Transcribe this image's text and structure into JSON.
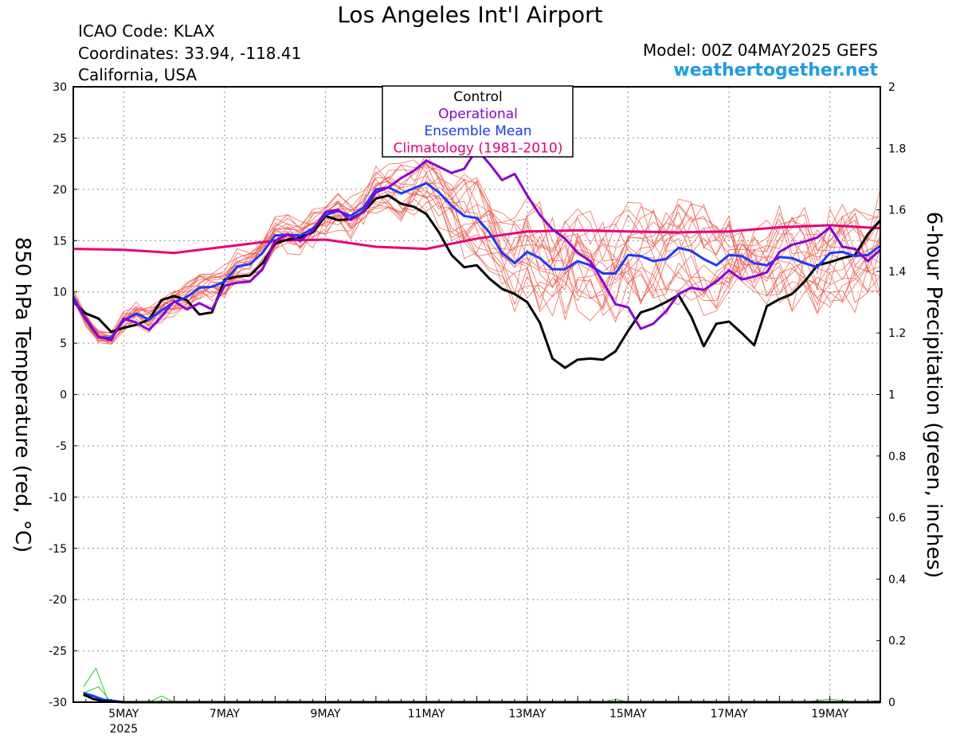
{
  "header": {
    "title": "Los Angeles Int'l Airport",
    "icao": "ICAO Code: KLAX",
    "coordinates": "Coordinates: 33.94, -118.41",
    "region": "California, USA",
    "model": "Model: 00Z 04MAY2025 GEFS",
    "site": "weathertogether.net"
  },
  "chart_data": {
    "type": "line",
    "title": "Los Angeles Int'l Airport",
    "ylabel": "850 hPa Temperature (red, °C)",
    "y2label": "6-hour Precipitation (green, inches)",
    "ylim": [
      -30,
      30
    ],
    "y2lim": [
      0,
      2
    ],
    "yticks": [
      30,
      25,
      20,
      15,
      10,
      5,
      0,
      -5,
      -10,
      -15,
      -20,
      -25,
      -30
    ],
    "y2ticks": [
      "2",
      "1.8",
      "1.6",
      "1.4",
      "1.2",
      "1",
      "0.8",
      "0.6",
      "0.4",
      "0.2",
      "0"
    ],
    "xlim_days": [
      0,
      16
    ],
    "x_tick_labels": [
      {
        "day": 1,
        "label": "5MAY",
        "sub": "2025"
      },
      {
        "day": 3,
        "label": "7MAY"
      },
      {
        "day": 5,
        "label": "9MAY"
      },
      {
        "day": 7,
        "label": "11MAY"
      },
      {
        "day": 9,
        "label": "13MAY"
      },
      {
        "day": 11,
        "label": "15MAY"
      },
      {
        "day": 13,
        "label": "17MAY"
      },
      {
        "day": 15,
        "label": "19MAY"
      }
    ],
    "grid": true,
    "legend_position": "top-center",
    "legend": [
      {
        "name": "Control",
        "color": "#000000"
      },
      {
        "name": "Operational",
        "color": "#8a00d6"
      },
      {
        "name": "Ensemble Mean",
        "color": "#1a3aff"
      },
      {
        "name": "Climatology (1981-2010)",
        "color": "#e6007a"
      }
    ],
    "series": [
      {
        "name": "Climatology (1981-2010)",
        "color": "#e6007a",
        "width": 3,
        "x": [
          0,
          1,
          2,
          3,
          4,
          5,
          6,
          7,
          8,
          9,
          10,
          11,
          12,
          13,
          14,
          15,
          16
        ],
        "y": [
          14.2,
          14.1,
          13.8,
          14.4,
          15.0,
          15.1,
          14.4,
          14.2,
          15.2,
          15.9,
          16.0,
          15.9,
          15.8,
          15.9,
          16.3,
          16.5,
          16.2
        ]
      },
      {
        "name": "Control",
        "color": "#000000",
        "width": 3,
        "x": [
          0,
          0.25,
          0.5,
          0.75,
          1,
          1.25,
          1.5,
          1.75,
          2,
          2.25,
          2.5,
          2.75,
          3,
          3.25,
          3.5,
          3.75,
          4,
          4.25,
          4.5,
          4.75,
          5,
          5.25,
          5.5,
          5.75,
          6,
          6.25,
          6.5,
          6.75,
          7,
          7.25,
          7.5,
          7.75,
          8,
          8.25,
          8.5,
          8.75,
          9,
          9.25,
          9.5,
          9.75,
          10,
          10.25,
          10.5,
          10.75,
          11,
          11.25,
          11.5,
          11.75,
          12,
          12.25,
          12.5,
          12.75,
          13,
          13.25,
          13.5,
          13.75,
          14,
          14.25,
          14.5,
          14.75,
          15,
          15.25,
          15.5,
          15.75,
          16
        ],
        "y": [
          9.0,
          7.9,
          7.4,
          6.1,
          6.5,
          6.8,
          7.3,
          9.2,
          9.6,
          9.2,
          7.8,
          8.0,
          11.2,
          11.5,
          11.6,
          12.8,
          14.7,
          15.1,
          15.3,
          15.8,
          17.4,
          17.0,
          17.1,
          17.8,
          19.1,
          19.4,
          18.6,
          18.3,
          17.6,
          15.8,
          13.6,
          12.4,
          12.6,
          11.3,
          10.3,
          9.8,
          9.0,
          7.0,
          3.5,
          2.6,
          3.4,
          3.5,
          3.4,
          4.2,
          6.2,
          8.0,
          8.4,
          9.0,
          9.7,
          7.6,
          4.7,
          6.9,
          7.1,
          6.0,
          4.8,
          8.6,
          9.3,
          9.8,
          11.0,
          12.6,
          12.9,
          13.3,
          13.6,
          15.6,
          17.0
        ]
      },
      {
        "name": "Ensemble Mean",
        "color": "#1a3aff",
        "width": 3,
        "x": [
          0,
          0.25,
          0.5,
          0.75,
          1,
          1.25,
          1.5,
          1.75,
          2,
          2.25,
          2.5,
          2.75,
          3,
          3.25,
          3.5,
          3.75,
          4,
          4.25,
          4.5,
          4.75,
          5,
          5.25,
          5.5,
          5.75,
          6,
          6.25,
          6.5,
          6.75,
          7,
          7.25,
          7.5,
          7.75,
          8,
          8.25,
          8.5,
          8.75,
          9,
          9.25,
          9.5,
          9.75,
          10,
          10.25,
          10.5,
          10.75,
          11,
          11.25,
          11.5,
          11.75,
          12,
          12.25,
          12.5,
          12.75,
          13,
          13.25,
          13.5,
          13.75,
          14,
          14.25,
          14.5,
          14.75,
          15,
          15.25,
          15.5,
          15.75,
          16
        ],
        "y": [
          9.5,
          7.3,
          5.6,
          5.5,
          7.2,
          7.9,
          7.3,
          8.2,
          9.0,
          9.5,
          10.4,
          10.5,
          11.0,
          12.5,
          12.7,
          13.8,
          15.5,
          15.6,
          15.5,
          16.2,
          17.5,
          17.9,
          17.4,
          18.2,
          20.0,
          20.2,
          19.6,
          20.1,
          20.6,
          19.7,
          18.4,
          17.4,
          17.2,
          15.8,
          13.8,
          12.8,
          13.9,
          13.3,
          12.2,
          12.2,
          13.0,
          12.6,
          11.8,
          11.8,
          13.6,
          13.5,
          13.0,
          13.2,
          14.3,
          14.0,
          13.2,
          12.6,
          13.6,
          13.5,
          12.8,
          12.6,
          13.4,
          13.3,
          12.8,
          12.4,
          13.8,
          13.9,
          13.5,
          13.6,
          14.5
        ]
      },
      {
        "name": "Operational",
        "color": "#8a00d6",
        "width": 3,
        "x": [
          0,
          0.25,
          0.5,
          0.75,
          1,
          1.25,
          1.5,
          1.75,
          2,
          2.25,
          2.5,
          2.75,
          3,
          3.25,
          3.5,
          3.75,
          4,
          4.25,
          4.5,
          4.75,
          5,
          5.25,
          5.5,
          5.75,
          6,
          6.25,
          6.5,
          6.75,
          7,
          7.25,
          7.5,
          7.75,
          8,
          8.25,
          8.5,
          8.75,
          9,
          9.25,
          9.5,
          9.75,
          10,
          10.25,
          10.5,
          10.75,
          11,
          11.25,
          11.5,
          11.75,
          12,
          12.25,
          12.5,
          12.75,
          13,
          13.25,
          13.5,
          13.75,
          14,
          14.25,
          14.5,
          14.75,
          15,
          15.25,
          15.5,
          15.75,
          16
        ],
        "y": [
          9.2,
          7.4,
          5.6,
          5.3,
          7.4,
          7.0,
          6.3,
          7.6,
          9.1,
          8.3,
          8.9,
          8.3,
          10.6,
          10.9,
          11.0,
          12.2,
          15.0,
          15.6,
          15.0,
          16.0,
          17.8,
          18.0,
          17.0,
          17.8,
          19.7,
          20.2,
          21.1,
          21.8,
          22.8,
          22.2,
          21.6,
          22.0,
          23.9,
          22.5,
          20.9,
          21.5,
          19.4,
          17.5,
          16.1,
          15.2,
          13.8,
          13.0,
          11.0,
          8.8,
          8.5,
          6.4,
          6.9,
          8.1,
          9.8,
          10.4,
          10.2,
          11.0,
          12.1,
          11.2,
          11.5,
          11.9,
          13.9,
          14.6,
          14.9,
          15.3,
          16.3,
          14.4,
          14.2,
          13.0,
          14.1
        ]
      }
    ],
    "precip_members": [
      {
        "x": [
          0.2,
          0.45,
          0.7,
          1.0,
          1.5,
          2.0,
          3.0,
          16.0
        ],
        "y": [
          0.05,
          0.11,
          0.0,
          0.0,
          0.0,
          0.0,
          0.0,
          0.0
        ]
      },
      {
        "x": [
          0.2,
          0.5,
          0.75,
          1.0,
          2.0,
          16.0
        ],
        "y": [
          0.03,
          0.05,
          0.0,
          0.0,
          0.0,
          0.0
        ]
      },
      {
        "x": [
          0.2,
          0.45,
          0.7,
          1.0,
          16.0
        ],
        "y": [
          0.02,
          0.01,
          0.0,
          0.0,
          0.0
        ]
      },
      {
        "x": [
          0.2,
          1.5,
          1.75,
          2.0,
          16.0
        ],
        "y": [
          0.0,
          0.0,
          0.02,
          0.0,
          0.0
        ]
      },
      {
        "x": [
          0.2,
          10.5,
          10.75,
          11.0,
          16.0
        ],
        "y": [
          0.0,
          0.0,
          0.01,
          0.0,
          0.0
        ]
      },
      {
        "x": [
          0.2,
          14.5,
          15.0,
          15.5,
          16.0
        ],
        "y": [
          0.0,
          0.0,
          0.01,
          0.0,
          0.005
        ]
      }
    ],
    "precip_mean": {
      "x": [
        0.2,
        0.4,
        0.6,
        1.0,
        2.0,
        16.0
      ],
      "y": [
        0.03,
        0.02,
        0.008,
        0.0,
        0.0,
        0.0
      ]
    },
    "precip_control": {
      "x": [
        0.2,
        0.4,
        0.6,
        1.0,
        16.0
      ],
      "y": [
        0.025,
        0.01,
        0.003,
        0.0,
        0.0
      ]
    }
  }
}
